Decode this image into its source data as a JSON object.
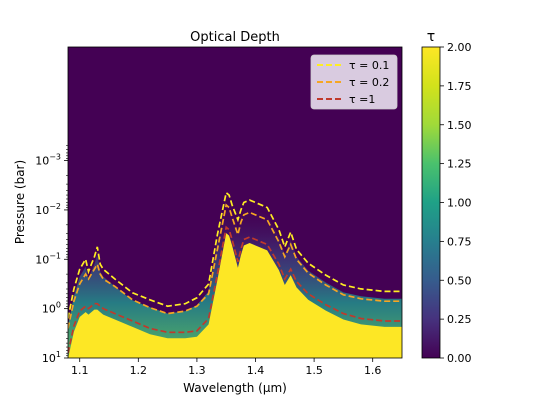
{
  "chart_data": {
    "type": "heatmap",
    "title": "Optical Depth",
    "xlabel": "Wavelength (μm)",
    "ylabel": "Pressure (bar)",
    "x_range": [
      1.08,
      1.65
    ],
    "y_range_bar": [
      5e-06,
      10
    ],
    "y_scale": "log",
    "y_inverted": true,
    "x_ticks": [
      {
        "value": 1.1,
        "label": "1.1"
      },
      {
        "value": 1.2,
        "label": "1.2"
      },
      {
        "value": 1.3,
        "label": "1.3"
      },
      {
        "value": 1.4,
        "label": "1.4"
      },
      {
        "value": 1.5,
        "label": "1.5"
      },
      {
        "value": 1.6,
        "label": "1.6"
      }
    ],
    "y_ticks": [
      {
        "exp": -3,
        "base": "10",
        "sup": "−3"
      },
      {
        "exp": -2,
        "base": "10",
        "sup": "−2"
      },
      {
        "exp": -1,
        "base": "10",
        "sup": "−1"
      },
      {
        "exp": 0,
        "base": "10",
        "sup": "0"
      },
      {
        "exp": 1,
        "base": "10",
        "sup": "1"
      }
    ],
    "colorbar": {
      "label": "τ",
      "colormap": "viridis",
      "range": [
        0,
        2
      ],
      "ticks": [
        "0.00",
        "0.25",
        "0.50",
        "0.75",
        "1.00",
        "1.25",
        "1.50",
        "1.75",
        "2.00"
      ]
    },
    "legend_position": "top-right",
    "contours": [
      {
        "name": "τ = 0.1",
        "tau": 0.1,
        "color": "#ffee22",
        "x": [
          1.08,
          1.09,
          1.1,
          1.11,
          1.115,
          1.12,
          1.125,
          1.13,
          1.135,
          1.14,
          1.16,
          1.19,
          1.22,
          1.25,
          1.28,
          1.3,
          1.32,
          1.335,
          1.35,
          1.355,
          1.36,
          1.37,
          1.375,
          1.38,
          1.39,
          1.4,
          1.42,
          1.44,
          1.45,
          1.46,
          1.47,
          1.49,
          1.52,
          1.55,
          1.58,
          1.62,
          1.65
        ],
        "y_log10": [
          0.2,
          -0.4,
          -0.8,
          -1.0,
          -0.75,
          -0.9,
          -1.05,
          -1.25,
          -0.9,
          -0.8,
          -0.6,
          -0.32,
          -0.18,
          -0.05,
          -0.1,
          -0.22,
          -0.5,
          -1.5,
          -2.35,
          -2.3,
          -2.1,
          -1.8,
          -2.0,
          -2.15,
          -2.2,
          -2.15,
          -2.05,
          -1.6,
          -1.25,
          -1.55,
          -1.2,
          -0.92,
          -0.68,
          -0.48,
          -0.4,
          -0.35,
          -0.35
        ]
      },
      {
        "name": "τ = 0.2",
        "tau": 0.2,
        "color": "#f5a623",
        "x": [
          1.08,
          1.09,
          1.1,
          1.11,
          1.115,
          1.12,
          1.125,
          1.13,
          1.135,
          1.14,
          1.16,
          1.19,
          1.22,
          1.25,
          1.28,
          1.3,
          1.32,
          1.335,
          1.35,
          1.355,
          1.36,
          1.37,
          1.375,
          1.38,
          1.39,
          1.4,
          1.42,
          1.44,
          1.45,
          1.46,
          1.47,
          1.49,
          1.52,
          1.55,
          1.58,
          1.62,
          1.65
        ],
        "y_log10": [
          0.4,
          -0.15,
          -0.5,
          -0.7,
          -0.6,
          -0.7,
          -0.8,
          -0.9,
          -0.7,
          -0.6,
          -0.45,
          -0.18,
          -0.02,
          0.1,
          0.05,
          -0.05,
          -0.3,
          -1.2,
          -2.1,
          -2.05,
          -1.85,
          -1.5,
          -1.75,
          -1.9,
          -1.95,
          -1.9,
          -1.8,
          -1.35,
          -1.05,
          -1.3,
          -1.0,
          -0.72,
          -0.48,
          -0.28,
          -0.2,
          -0.15,
          -0.15
        ]
      },
      {
        "name": "τ =1",
        "tau": 1.0,
        "color": "#c0392b",
        "x": [
          1.08,
          1.09,
          1.1,
          1.11,
          1.115,
          1.12,
          1.125,
          1.13,
          1.135,
          1.14,
          1.16,
          1.19,
          1.22,
          1.25,
          1.28,
          1.3,
          1.32,
          1.335,
          1.35,
          1.355,
          1.36,
          1.37,
          1.375,
          1.38,
          1.39,
          1.4,
          1.42,
          1.44,
          1.45,
          1.46,
          1.47,
          1.49,
          1.52,
          1.55,
          1.58,
          1.62,
          1.65
        ],
        "y_log10": [
          0.9,
          0.35,
          0.05,
          -0.05,
          0.0,
          -0.05,
          -0.1,
          -0.1,
          -0.05,
          0.0,
          0.1,
          0.25,
          0.4,
          0.48,
          0.48,
          0.45,
          0.2,
          -0.7,
          -1.65,
          -1.6,
          -1.4,
          -0.95,
          -1.2,
          -1.4,
          -1.45,
          -1.4,
          -1.3,
          -0.9,
          -0.6,
          -0.8,
          -0.55,
          -0.3,
          -0.08,
          0.1,
          0.2,
          0.25,
          0.25
        ]
      }
    ]
  }
}
